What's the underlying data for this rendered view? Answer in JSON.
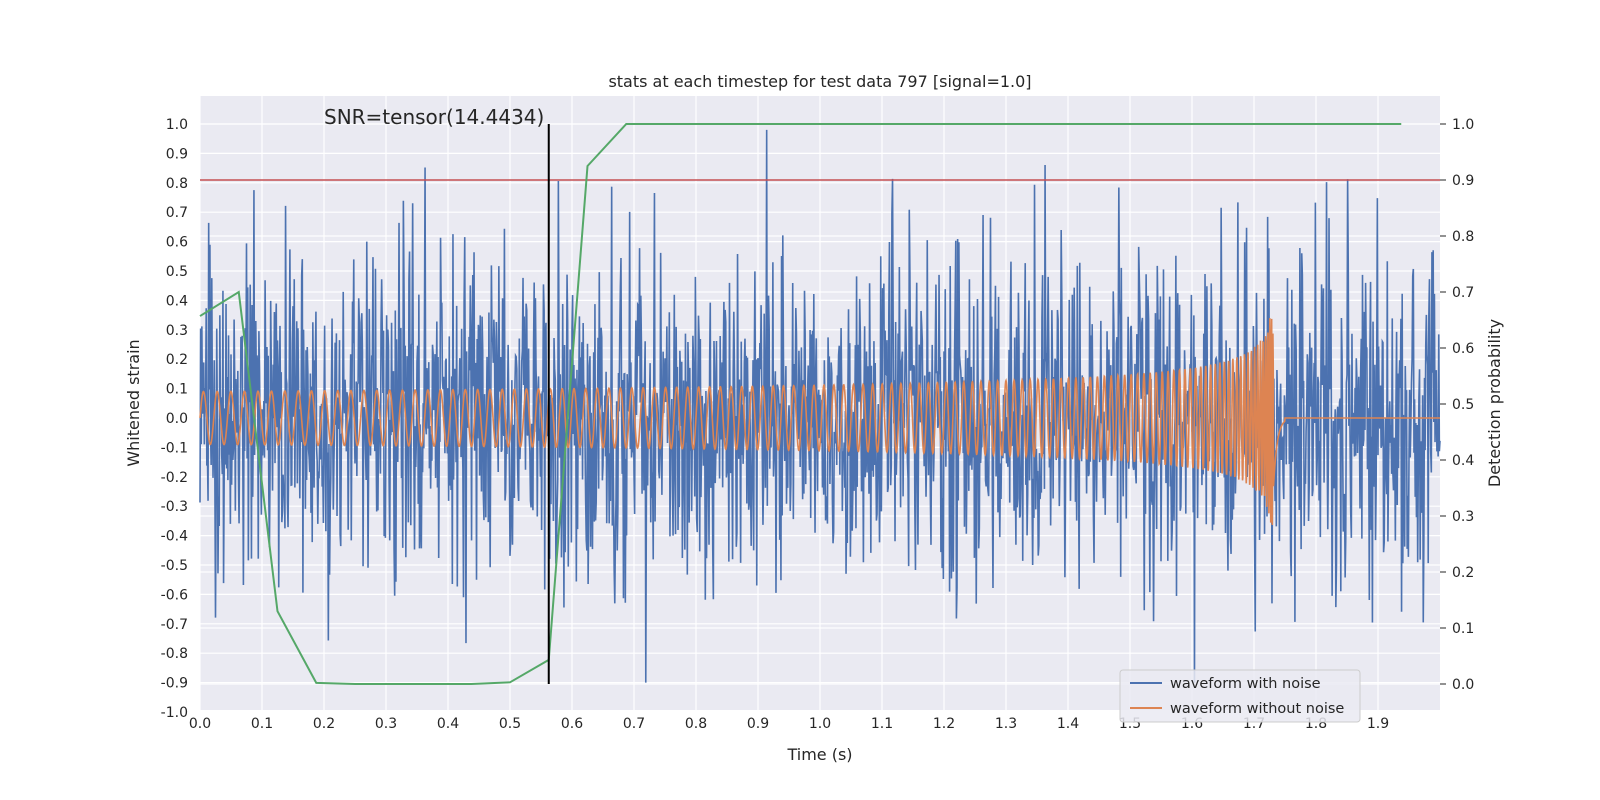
{
  "chart_data": {
    "type": "line",
    "title": "stats at each timestep for test data 797 [signal=1.0]",
    "xlabel": "Time (s)",
    "ylabel": "Whitened strain",
    "y2label": "Detection probability",
    "xlim": [
      0.0,
      2.0
    ],
    "ylim": [
      -1.0,
      1.0
    ],
    "y2lim": [
      -0.05,
      1.05
    ],
    "x_ticks": [
      "0.0",
      "0.1",
      "0.2",
      "0.3",
      "0.4",
      "0.5",
      "0.6",
      "0.7",
      "0.8",
      "0.9",
      "1.0",
      "1.1",
      "1.2",
      "1.3",
      "1.4",
      "1.5",
      "1.6",
      "1.7",
      "1.8",
      "1.9"
    ],
    "y_ticks": [
      "-1.0",
      "-0.9",
      "-0.8",
      "-0.7",
      "-0.6",
      "-0.5",
      "-0.4",
      "-0.3",
      "-0.2",
      "-0.1",
      "0.0",
      "0.1",
      "0.2",
      "0.3",
      "0.4",
      "0.5",
      "0.6",
      "0.7",
      "0.8",
      "0.9",
      "1.0"
    ],
    "y2_ticks": [
      "0.0",
      "0.1",
      "0.2",
      "0.3",
      "0.4",
      "0.5",
      "0.6",
      "0.7",
      "0.8",
      "0.9",
      "1.0"
    ],
    "annotation": "SNR=tensor(14.4434)",
    "marker_time": 0.5625,
    "threshold": 0.9,
    "legend_position": "lower-right",
    "series": [
      {
        "name": "waveform with noise",
        "color": "#4c72b0",
        "description": "whitened strain, noise-dominated, range approx -0.9 to 1.0",
        "noise_amplitude": 0.3,
        "seed": 797
      },
      {
        "name": "waveform without noise",
        "color": "#dd8452",
        "description": "chirp signal, amplitude ~0.09 rising to ~0.37, merger near t=1.73 s, zero after 1.75 s",
        "merger_time": 1.73
      },
      {
        "name": "detection probability",
        "color": "#55a868",
        "axis": "right",
        "x": [
          0.0,
          0.0625,
          0.125,
          0.1875,
          0.25,
          0.3125,
          0.375,
          0.4375,
          0.5,
          0.5625,
          0.625,
          0.6875,
          0.75,
          0.8125,
          0.875,
          0.9375,
          1.0,
          1.0625,
          1.125,
          1.1875,
          1.25,
          1.3125,
          1.375,
          1.4375,
          1.5,
          1.5625,
          1.625,
          1.6875,
          1.75,
          1.8125,
          1.875,
          1.9375
        ],
        "values": [
          0.657,
          0.7,
          0.13,
          0.002,
          0.0,
          0.0,
          0.0,
          0.0,
          0.003,
          0.043,
          0.925,
          1.0,
          1.0,
          1.0,
          1.0,
          1.0,
          1.0,
          1.0,
          1.0,
          1.0,
          1.0,
          1.0,
          1.0,
          1.0,
          1.0,
          1.0,
          1.0,
          1.0,
          1.0,
          1.0,
          1.0,
          1.0
        ]
      },
      {
        "name": "threshold",
        "color": "#c44e52",
        "axis": "right",
        "value": 0.9
      },
      {
        "name": "detection time",
        "color": "#000000",
        "axis": "right",
        "value": 0.5625
      }
    ]
  }
}
